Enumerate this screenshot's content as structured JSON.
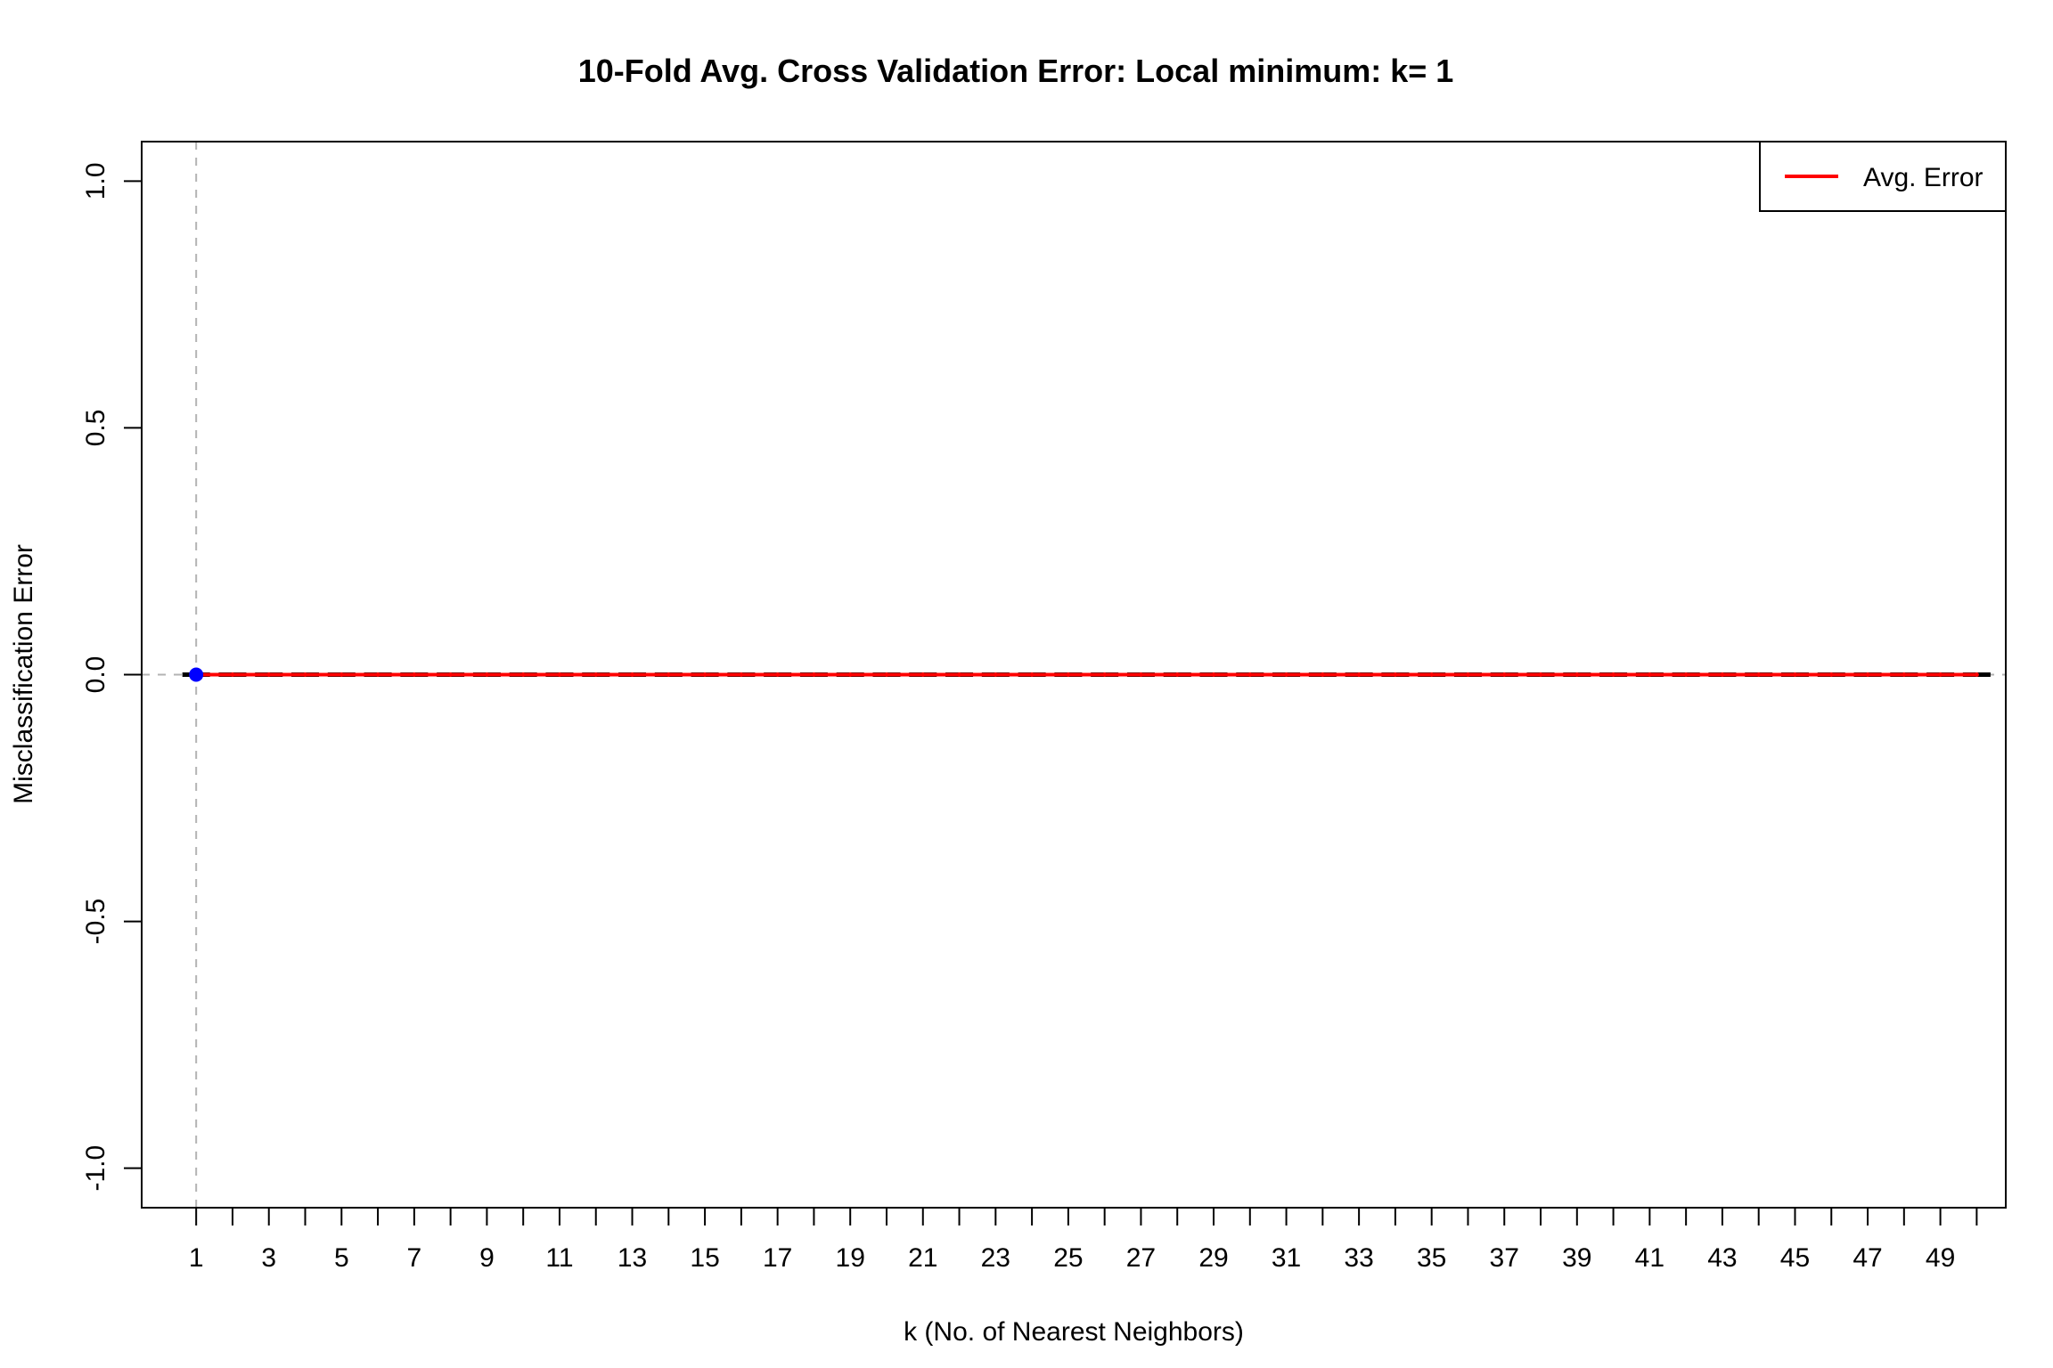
{
  "chart_data": {
    "type": "line",
    "title": "10-Fold Avg. Cross Validation Error: Local minimum: k= 1",
    "xlabel": "k (No. of Nearest Neighbors)",
    "ylabel": "Misclassification Error",
    "xlim": [
      -0.5,
      50.8
    ],
    "ylim": [
      -1.08,
      1.08
    ],
    "x_ticks": [
      1,
      2,
      3,
      4,
      5,
      6,
      7,
      8,
      9,
      10,
      11,
      12,
      13,
      14,
      15,
      16,
      17,
      18,
      19,
      20,
      21,
      22,
      23,
      24,
      25,
      26,
      27,
      28,
      29,
      30,
      31,
      32,
      33,
      34,
      35,
      36,
      37,
      38,
      39,
      40,
      41,
      42,
      43,
      44,
      45,
      46,
      47,
      48,
      49,
      50
    ],
    "x_tick_labels": [
      "1",
      "",
      "3",
      "",
      "5",
      "",
      "7",
      "",
      "9",
      "",
      "11",
      "",
      "13",
      "",
      "15",
      "",
      "17",
      "",
      "19",
      "",
      "21",
      "",
      "23",
      "",
      "25",
      "",
      "27",
      "",
      "29",
      "",
      "31",
      "",
      "33",
      "",
      "35",
      "",
      "37",
      "",
      "39",
      "",
      "41",
      "",
      "43",
      "",
      "45",
      "",
      "47",
      "",
      "49",
      ""
    ],
    "y_ticks": [
      -1.0,
      -0.5,
      0.0,
      0.5,
      1.0
    ],
    "y_tick_labels": [
      "-1.0",
      "-0.5",
      "0.0",
      "0.5",
      "1.0"
    ],
    "series": [
      {
        "name": "Avg. Error",
        "color": "#ff0000",
        "x": [
          1,
          2,
          3,
          4,
          5,
          6,
          7,
          8,
          9,
          10,
          11,
          12,
          13,
          14,
          15,
          16,
          17,
          18,
          19,
          20,
          21,
          22,
          23,
          24,
          25,
          26,
          27,
          28,
          29,
          30,
          31,
          32,
          33,
          34,
          35,
          36,
          37,
          38,
          39,
          40,
          41,
          42,
          43,
          44,
          45,
          46,
          47,
          48,
          49,
          50
        ],
        "values": [
          0,
          0,
          0,
          0,
          0,
          0,
          0,
          0,
          0,
          0,
          0,
          0,
          0,
          0,
          0,
          0,
          0,
          0,
          0,
          0,
          0,
          0,
          0,
          0,
          0,
          0,
          0,
          0,
          0,
          0,
          0,
          0,
          0,
          0,
          0,
          0,
          0,
          0,
          0,
          0,
          0,
          0,
          0,
          0,
          0,
          0,
          0,
          0,
          0,
          0
        ]
      }
    ],
    "error_bars": {
      "color": "#000000",
      "lower": 0,
      "upper": 0
    },
    "minimum_marker": {
      "x": 1,
      "y": 0,
      "color": "#0000ff"
    },
    "reference_lines": {
      "vertical_x": 1,
      "horizontal_y": 0,
      "color": "#b3b3b3",
      "style": "dashed"
    },
    "legend": {
      "position": "top-right",
      "entries": [
        "Avg. Error"
      ]
    },
    "grid": false
  }
}
